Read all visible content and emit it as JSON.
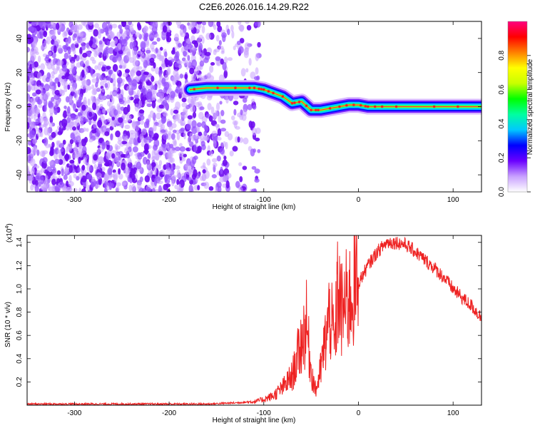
{
  "title": "C2E6.2026.016.14.29.R22",
  "chart_data": [
    {
      "type": "heatmap",
      "xlabel": "Height of straight line (km)",
      "ylabel": "Frequency (Hz)",
      "xlim": [
        -350,
        130
      ],
      "ylim": [
        -50,
        50
      ],
      "xticks": [
        -300,
        -200,
        -100,
        0,
        100
      ],
      "yticks": [
        -40,
        -20,
        0,
        20,
        40
      ],
      "colorbar": {
        "label": "Normalized spectral amplitude",
        "range": [
          0,
          1
        ],
        "ticks": [
          0.0,
          0.2,
          0.4,
          0.6,
          0.8
        ],
        "colors": [
          "#ffffff",
          "#c8a0ff",
          "#6a00ff",
          "#0000ff",
          "#00c8ff",
          "#00ffa0",
          "#00ff00",
          "#c8ff00",
          "#ffff00",
          "#ff8000",
          "#ff0000",
          "#ff0080"
        ]
      },
      "ridge": {
        "x": [
          -178,
          -160,
          -145,
          -130,
          -110,
          -100,
          -90,
          -80,
          -70,
          -60,
          -50,
          -40,
          -30,
          -20,
          -10,
          0,
          10,
          40,
          80,
          130
        ],
        "y": [
          10,
          11,
          11,
          11,
          11,
          10,
          8,
          6,
          2,
          3,
          -2,
          -2,
          -1,
          0,
          1,
          1,
          0,
          0,
          0,
          0
        ]
      }
    },
    {
      "type": "line",
      "xlabel": "Height of straight line (km)",
      "ylabel": "SNR (10 * v/v)",
      "yscale_label": "(x10",
      "yscale_exp": "4",
      "xlim": [
        -350,
        130
      ],
      "ylim": [
        0,
        1.46
      ],
      "xticks": [
        -300,
        -200,
        -100,
        0,
        100
      ],
      "yticks": [
        0.2,
        0.4,
        0.6,
        0.8,
        1.0,
        1.2,
        1.4
      ],
      "series": [
        {
          "color": "#ee2222",
          "x": [
            -350,
            -300,
            -250,
            -200,
            -160,
            -130,
            -110,
            -100,
            -90,
            -80,
            -70,
            -65,
            -60,
            -55,
            -50,
            -45,
            -40,
            -35,
            -30,
            -25,
            -22,
            -18,
            -15,
            -10,
            -5,
            0,
            10,
            20,
            30,
            40,
            50,
            60,
            70,
            80,
            90,
            100,
            110,
            120,
            130
          ],
          "y": [
            0.01,
            0.01,
            0.01,
            0.01,
            0.01,
            0.02,
            0.03,
            0.05,
            0.08,
            0.15,
            0.25,
            0.4,
            0.55,
            0.7,
            0.3,
            0.12,
            0.3,
            0.55,
            0.8,
            0.5,
            1.0,
            0.8,
            0.85,
            0.9,
            1.0,
            1.05,
            1.2,
            1.32,
            1.4,
            1.4,
            1.38,
            1.32,
            1.25,
            1.18,
            1.1,
            1.0,
            0.92,
            0.85,
            0.75
          ]
        }
      ]
    }
  ]
}
